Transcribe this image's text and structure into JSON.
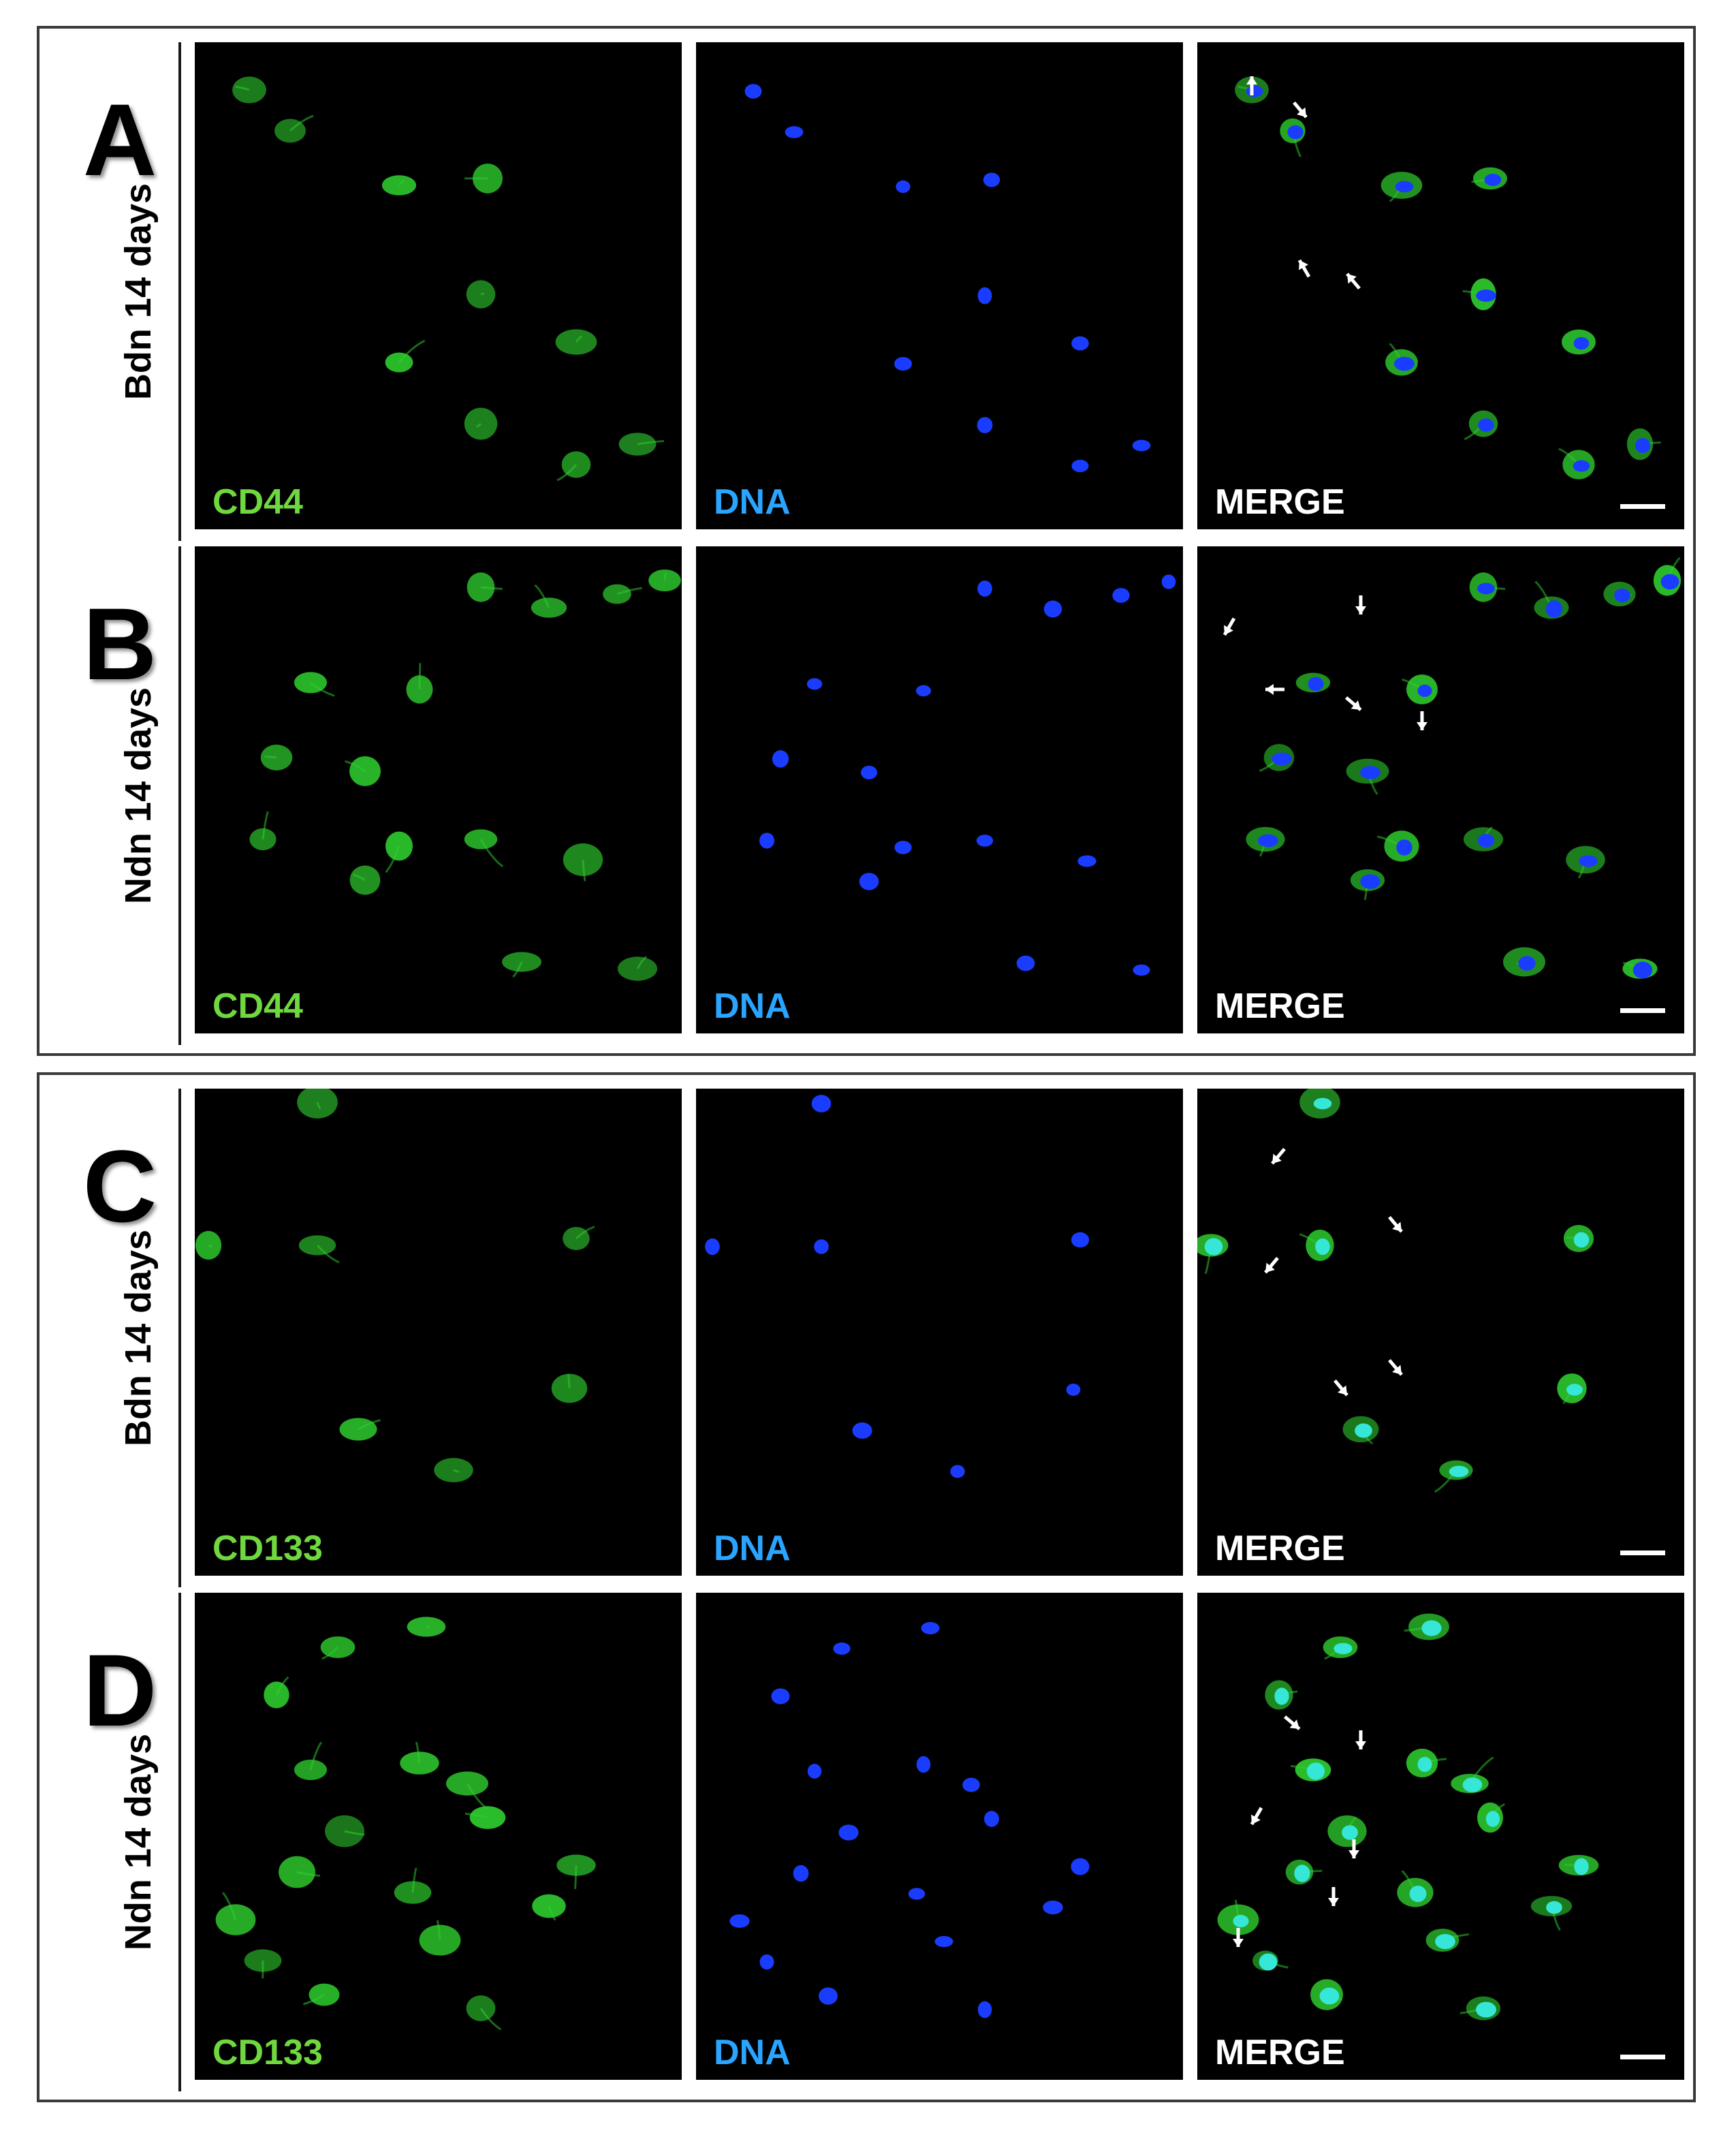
{
  "colors": {
    "green": "#6fd83f",
    "blue": "#2aa4ff",
    "merge_label": "#ffffff",
    "cell_green": "#2fd12f",
    "nucleus_blue": "#1a3cff",
    "merge_cyan": "#36e6d6"
  },
  "rows": [
    {
      "letter": "A",
      "condition": "Bdn 14 days",
      "panels": [
        {
          "label": "CD44",
          "channel": "green"
        },
        {
          "label": "DNA",
          "channel": "blue"
        },
        {
          "label": "MERGE",
          "channel": "merge"
        }
      ]
    },
    {
      "letter": "B",
      "condition": "Ndn 14 days",
      "panels": [
        {
          "label": "CD44",
          "channel": "green"
        },
        {
          "label": "DNA",
          "channel": "blue"
        },
        {
          "label": "MERGE",
          "channel": "merge"
        }
      ]
    },
    {
      "letter": "C",
      "condition": "Bdn 14 days",
      "panels": [
        {
          "label": "CD133",
          "channel": "green"
        },
        {
          "label": "DNA",
          "channel": "blue"
        },
        {
          "label": "MERGE",
          "channel": "merge"
        }
      ]
    },
    {
      "letter": "D",
      "condition": "Ndn 14 days",
      "panels": [
        {
          "label": "CD133",
          "channel": "green"
        },
        {
          "label": "DNA",
          "channel": "blue"
        },
        {
          "label": "MERGE",
          "channel": "merge"
        }
      ]
    }
  ]
}
